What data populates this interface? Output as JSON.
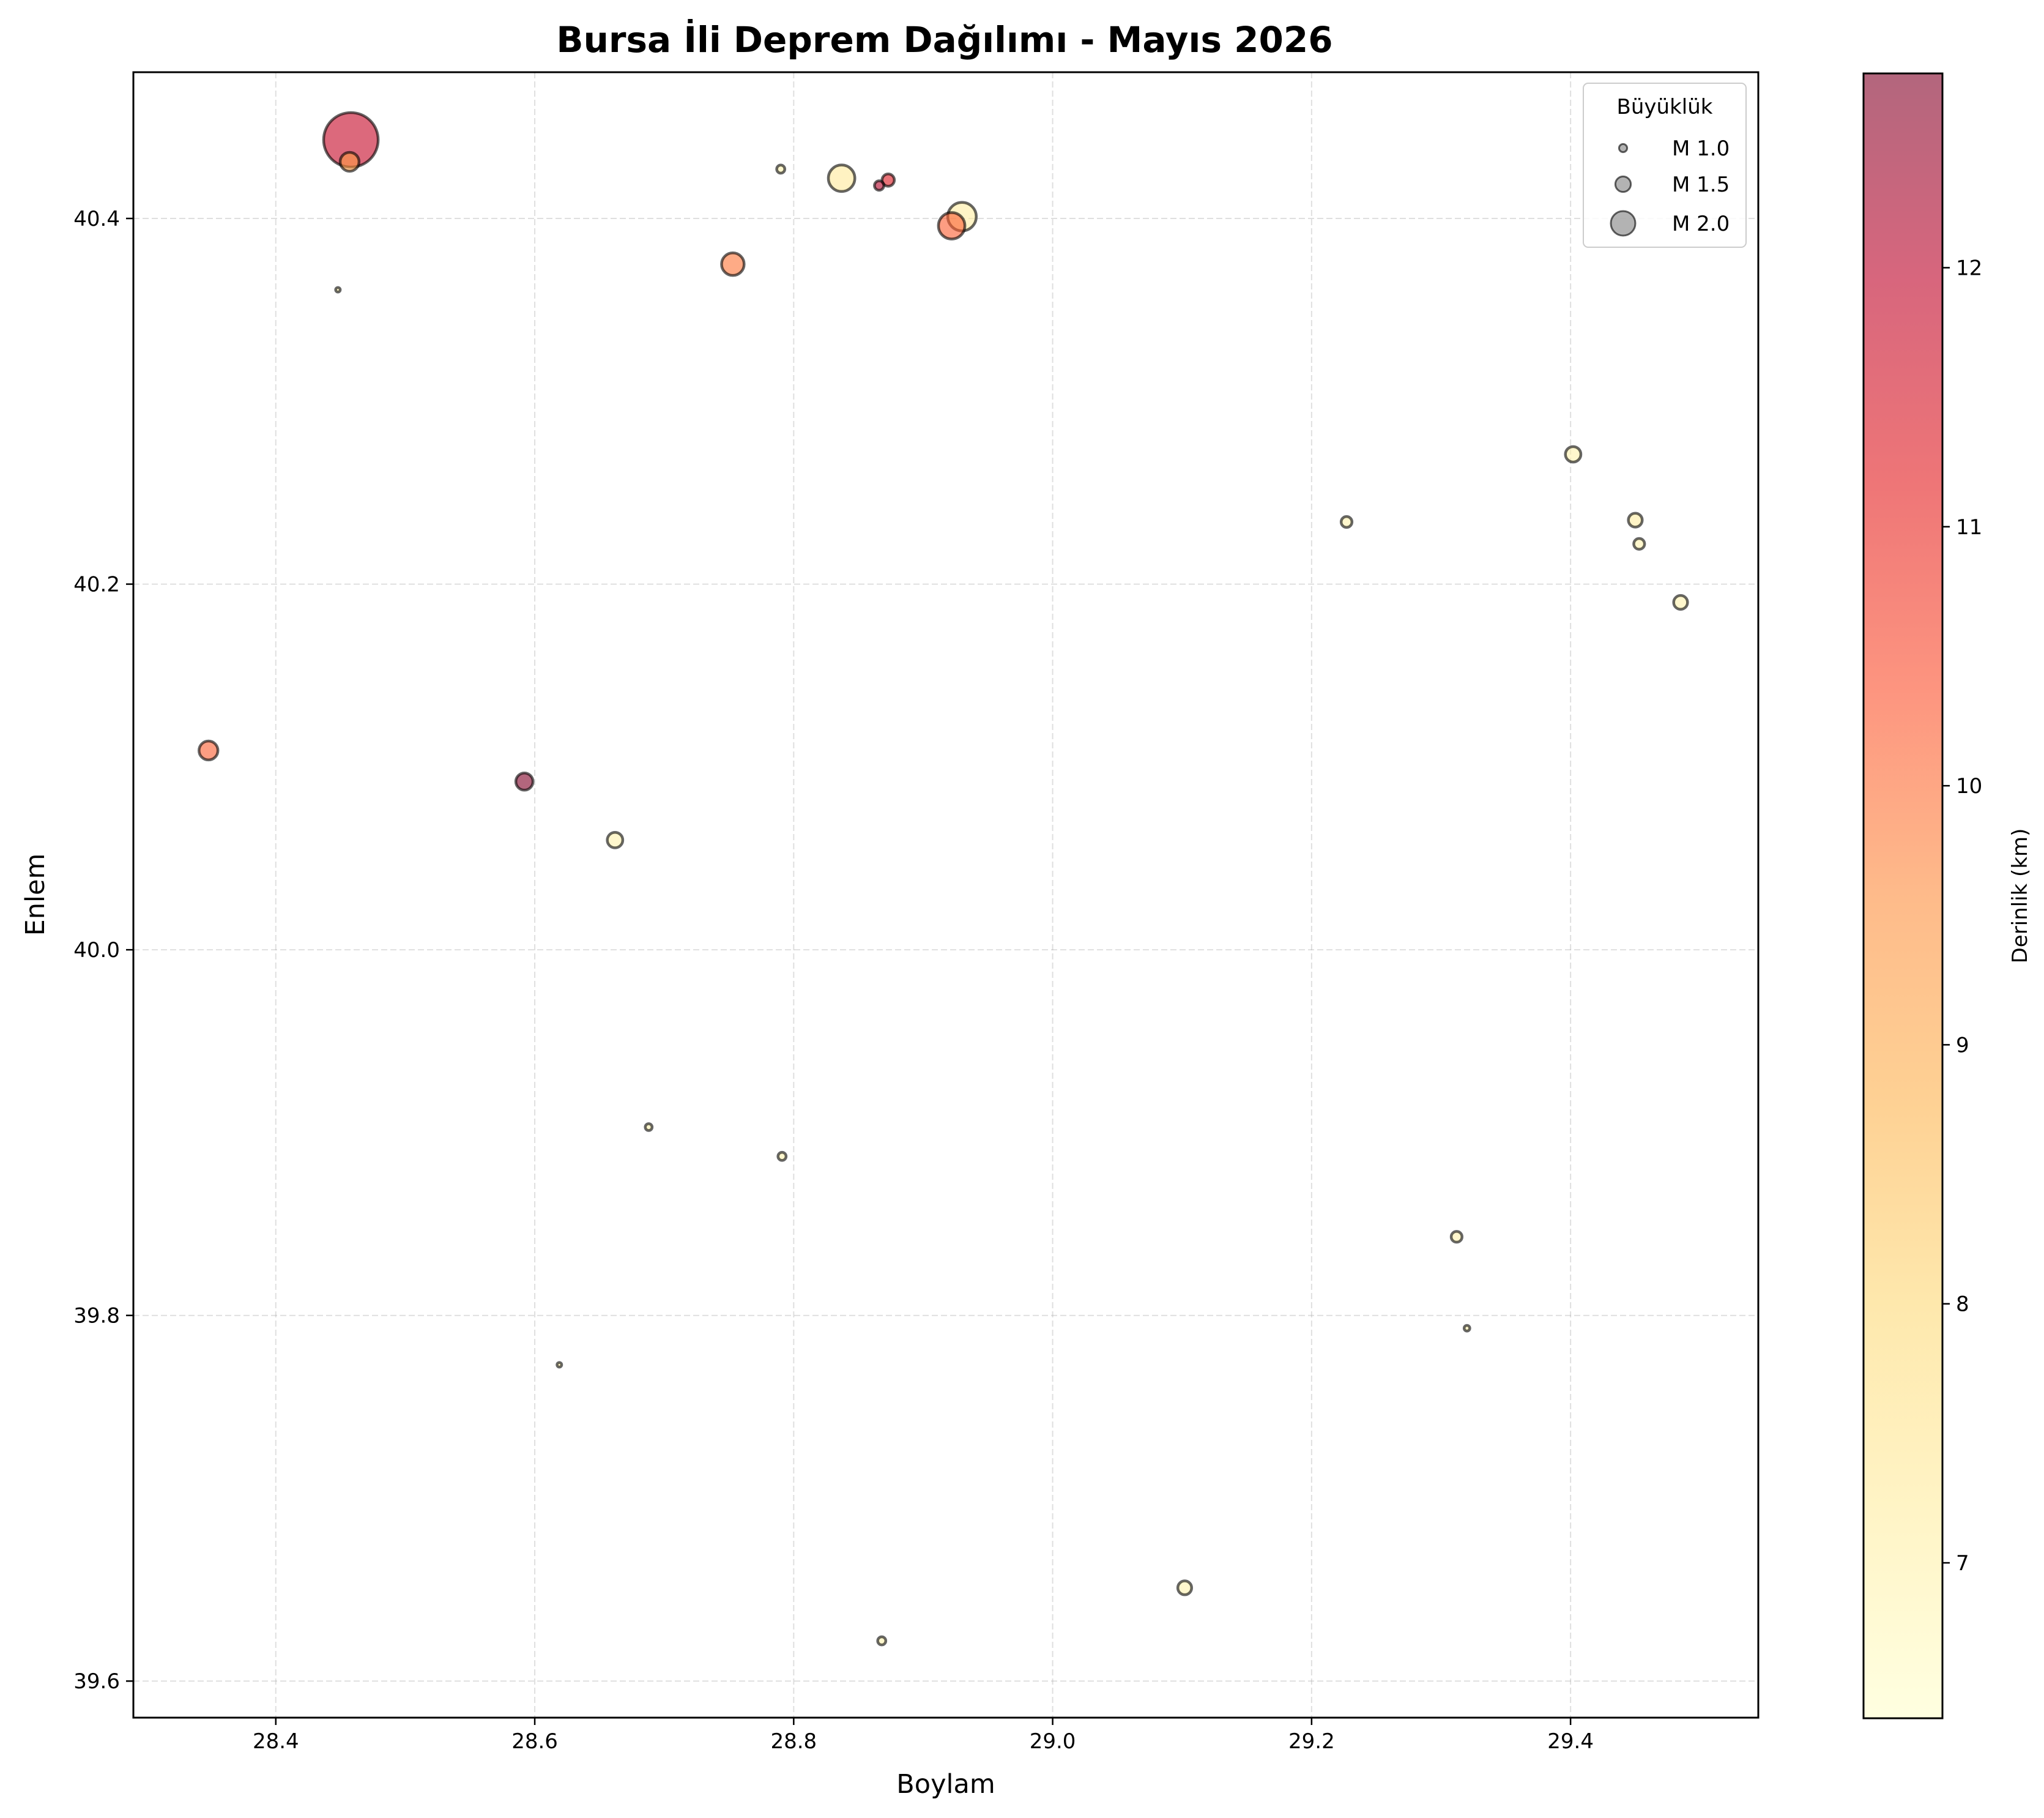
{
  "chart_data": {
    "type": "scatter",
    "title": "Bursa İli Deprem Dağılımı - Mayıs 2026",
    "xlabel": "Boylam",
    "ylabel": "Enlem",
    "xlim": [
      28.29,
      29.545
    ],
    "ylim": [
      39.58,
      40.48
    ],
    "xticks": [
      28.4,
      28.6,
      28.8,
      29.0,
      29.2,
      29.4
    ],
    "xtick_labels": [
      "28.4",
      "28.6",
      "28.8",
      "29.0",
      "29.2",
      "29.4"
    ],
    "yticks": [
      39.6,
      39.8,
      40.0,
      40.2,
      40.4
    ],
    "ytick_labels": [
      "39.6",
      "39.8",
      "40.0",
      "40.2",
      "40.4"
    ],
    "grid": true,
    "grid_style": "dashed",
    "colormap": "YlOrRd",
    "point_alpha": 0.6,
    "colorbar": {
      "label": "Derinlik (km)",
      "range": [
        6.4,
        12.75
      ],
      "ticks": [
        7,
        8,
        9,
        10,
        11,
        12
      ],
      "tick_labels": [
        "7",
        "8",
        "9",
        "10",
        "11",
        "12"
      ]
    },
    "size_legend": {
      "title": "Büyüklük",
      "placement": "top-right",
      "entries": [
        {
          "label": "M 1.0",
          "magnitude": 1.0
        },
        {
          "label": "M 1.5",
          "magnitude": 1.5
        },
        {
          "label": "M 2.0",
          "magnitude": 2.0
        }
      ]
    },
    "points": [
      {
        "lon": 28.458,
        "lat": 40.443,
        "mag": 3.3,
        "depth": 11.8
      },
      {
        "lon": 28.457,
        "lat": 40.431,
        "mag": 1.7,
        "depth": 9.3
      },
      {
        "lon": 28.448,
        "lat": 40.361,
        "mag": 0.7,
        "depth": 7.0
      },
      {
        "lon": 28.79,
        "lat": 40.427,
        "mag": 1.0,
        "depth": 7.0
      },
      {
        "lon": 28.837,
        "lat": 40.422,
        "mag": 2.1,
        "depth": 7.3
      },
      {
        "lon": 28.873,
        "lat": 40.421,
        "mag": 1.3,
        "depth": 11.3
      },
      {
        "lon": 28.866,
        "lat": 40.418,
        "mag": 1.1,
        "depth": 12.1
      },
      {
        "lon": 28.93,
        "lat": 40.401,
        "mag": 2.2,
        "depth": 7.2
      },
      {
        "lon": 28.922,
        "lat": 40.396,
        "mag": 2.1,
        "depth": 10.2
      },
      {
        "lon": 28.753,
        "lat": 40.375,
        "mag": 1.9,
        "depth": 9.9
      },
      {
        "lon": 29.402,
        "lat": 40.271,
        "mag": 1.5,
        "depth": 7.0
      },
      {
        "lon": 29.227,
        "lat": 40.234,
        "mag": 1.2,
        "depth": 7.0
      },
      {
        "lon": 29.45,
        "lat": 40.235,
        "mag": 1.4,
        "depth": 7.2
      },
      {
        "lon": 29.453,
        "lat": 40.222,
        "mag": 1.2,
        "depth": 7.0
      },
      {
        "lon": 29.485,
        "lat": 40.19,
        "mag": 1.4,
        "depth": 7.0
      },
      {
        "lon": 28.348,
        "lat": 40.109,
        "mag": 1.7,
        "depth": 10.2
      },
      {
        "lon": 28.592,
        "lat": 40.092,
        "mag": 1.6,
        "depth": 12.8
      },
      {
        "lon": 28.662,
        "lat": 40.06,
        "mag": 1.5,
        "depth": 7.0
      },
      {
        "lon": 28.688,
        "lat": 39.903,
        "mag": 0.9,
        "depth": 7.0
      },
      {
        "lon": 28.791,
        "lat": 39.887,
        "mag": 1.0,
        "depth": 7.0
      },
      {
        "lon": 29.312,
        "lat": 39.843,
        "mag": 1.2,
        "depth": 7.0
      },
      {
        "lon": 29.32,
        "lat": 39.793,
        "mag": 0.8,
        "depth": 7.0
      },
      {
        "lon": 28.619,
        "lat": 39.773,
        "mag": 0.7,
        "depth": 7.0
      },
      {
        "lon": 29.102,
        "lat": 39.651,
        "mag": 1.4,
        "depth": 7.0
      },
      {
        "lon": 28.868,
        "lat": 39.622,
        "mag": 1.0,
        "depth": 7.0
      }
    ]
  }
}
